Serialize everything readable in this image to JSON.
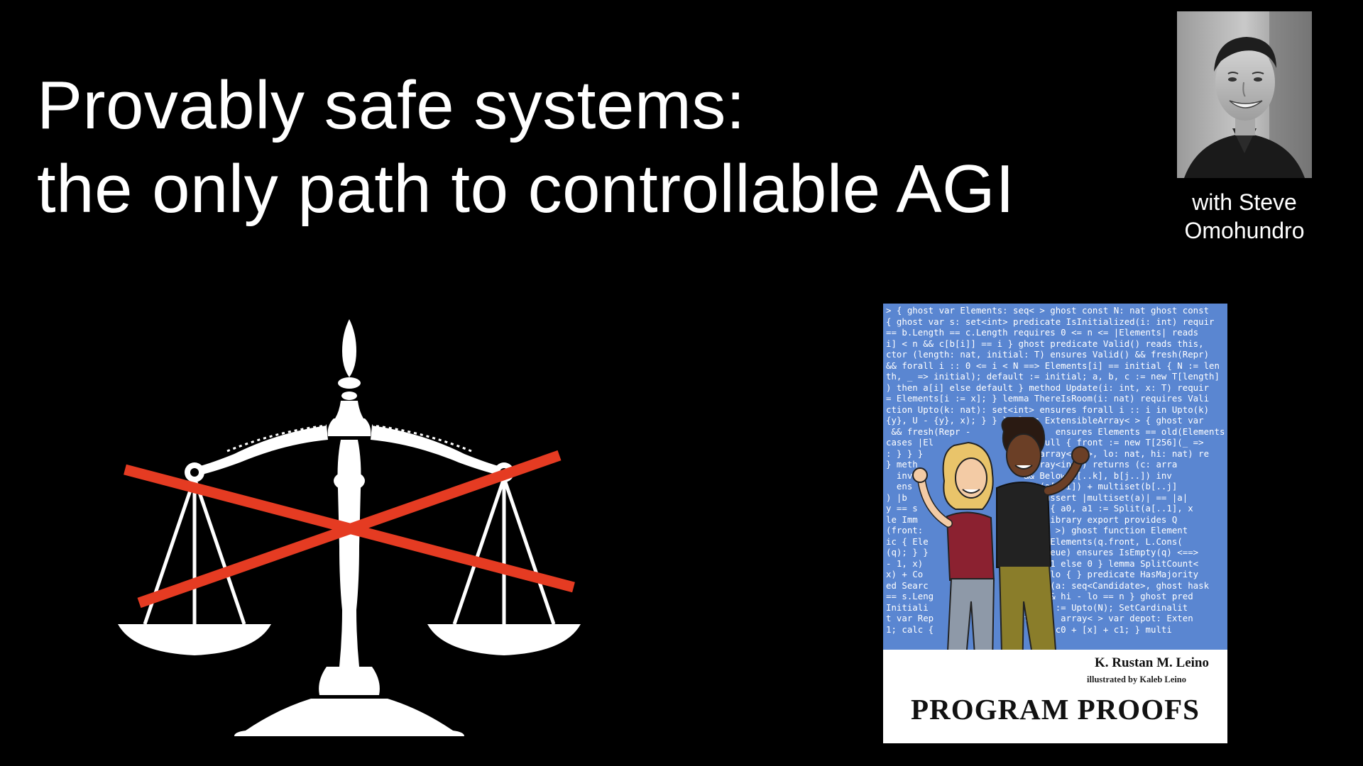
{
  "slide": {
    "title_line1": "Provably safe systems:",
    "title_line2": "the only path to controllable AGI"
  },
  "speaker": {
    "caption_line1": "with Steve",
    "caption_line2": "Omohundro"
  },
  "book": {
    "author": "K. Rustan M. Leino",
    "illustrator": "illustrated by Kaleb Leino",
    "title": "PROGRAM PROOFS",
    "code_lines": [
      "> { ghost var Elements: seq< > ghost const N: nat ghost const",
      "{ ghost var s: set<int> predicate IsInitialized(i: int) requir",
      "== b.Length == c.Length requires 0 <= n <= |Elements| reads",
      "i] < n && c[b[i]] == i } ghost predicate Valid() reads this,",
      "ctor (length: nat, initial: T) ensures Valid() && fresh(Repr)",
      "&& forall i :: 0 <= i < N ==> Elements[i] == initial { N := len",
      "th, _ => initial); default := initial; a, b, c := new T[length]",
      ") then a[i] else default } method Update(i: int, x: T) requir",
      "= Elements[i := x]; } lemma ThereIsRoom(i: nat) requires Vali",
      "ction Upto(k: nat): set<int> ensures forall i :: i in Upto(k)",
      "{y}, U - {y}, x); } } } class ExtensibleArray< > { ghost var",
      " && fresh(Repr -                ensures Elements == old(Elements)[",
      "cases |El                 == null { front := new T[256](_ =>",
      ": } } }                  (a: array<int>, lo: nat, hi: nat) re",
      "} meth                   t array<int>) returns (c: arra",
      "  inv                     && Below(c[..k], b[j..]) inv",
      "  ens                     set(a[..i]) + multiset(b[..j]",
      ") |b                      0 { assert |multiset(a)| == |a|",
      "y == s                    else { a0, a1 := Split(a[..1], x",
      "le Imm                    ListLibrary export provides Q",
      "(front:                   List< >) ghost function Element",
      "ic { Ele                  ) == Elements(q.front, L.Cons(",
      "(q); } }                 (q: Queue) ensures IsEmpty(q) <==> ",
      "- 1, x)                   then 1 else 0 } lemma SplitCount<",
      "x) + Co                   hi - lo { } predicate HasMajority",
      "ed Searc                  (==)>(a: seq<Candidate>, ghost hask",
      "== s.Leng                 hi) && hi - lo == n } ghost pred",
      "Initiali                  var S := Upto(N); SetCardinalit",
      "t var Rep                 front: array< > var depot: Exten",
      "1; calc {                  c == c0 + [x] + c1; } multi"
    ]
  },
  "colors": {
    "background": "#000000",
    "text": "#ffffff",
    "cross": "#e53b22",
    "book_blue": "#5a86d1"
  },
  "icons": {
    "scales": "balance-scale-icon",
    "cross": "red-x-cross-icon",
    "photo": "speaker-portrait"
  }
}
